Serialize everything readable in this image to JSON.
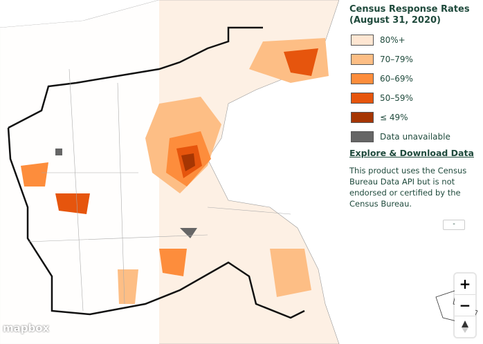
{
  "legend": {
    "title": "Census Response Rates",
    "subtitle": "(August 31, 2020)",
    "items": [
      {
        "label": "80%+",
        "color": "#fee6d2"
      },
      {
        "label": "70–79%",
        "color": "#fdbe85"
      },
      {
        "label": "60–69%",
        "color": "#fd8d3c"
      },
      {
        "label": "50–59%",
        "color": "#e6550d"
      },
      {
        "label": "≤ 49%",
        "color": "#a63603"
      },
      {
        "label": "Data unavailable",
        "color": "#666666"
      }
    ],
    "link": "Explore & Download Data",
    "disclaimer": "This product uses the Census Bureau Data API but is not endorsed or certified by the Census Bureau.",
    "collapse": "-"
  },
  "controls": {
    "zoom_in": "+",
    "zoom_out": "−"
  },
  "attribution": "mapbox"
}
